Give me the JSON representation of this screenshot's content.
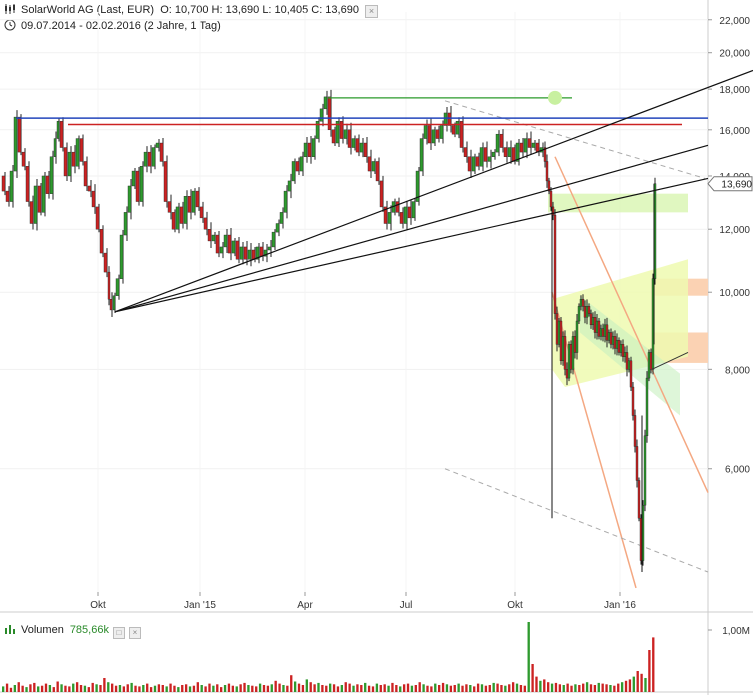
{
  "header": {
    "title": "SolarWorld AG (Last, EUR)",
    "ohlc": "O: 10,700  H: 13,690  L: 10,405  C: 13,690",
    "range": "09.07.2014 - 02.02.2016 (2 Jahre, 1 Tag)"
  },
  "volume": {
    "label": "Volumen",
    "value": "785,66k",
    "axis_label": "1,00M"
  },
  "colors": {
    "up": "#2e9a2e",
    "down": "#cc2222",
    "blue_line": "#2244bb",
    "red_line": "#cc2222",
    "green_line": "#2a9a2a",
    "channel_orange": "#f4a882",
    "trend": "#111111",
    "dashed": "#aaaaaa"
  },
  "chart_data": {
    "type": "line",
    "xlabels": [
      "Okt",
      "Jan '15",
      "Apr",
      "Jul",
      "Okt",
      "Jan '16"
    ],
    "ylabels": [
      "22,000",
      "20,000",
      "18,000",
      "16,000",
      "14,000",
      "12,000",
      "10,000",
      "8,000",
      "6,000"
    ],
    "last_price_label": "13,690",
    "yscale": "log",
    "ylim": [
      4.2,
      22.5
    ],
    "series": [
      {
        "values": [
          [
            0,
            14.0
          ],
          [
            4,
            13.4
          ],
          [
            8,
            13.0
          ],
          [
            12,
            14.2
          ],
          [
            16,
            16.6
          ],
          [
            20,
            15.0
          ],
          [
            24,
            14.4
          ],
          [
            28,
            13.0
          ],
          [
            32,
            12.2
          ],
          [
            36,
            13.6
          ],
          [
            40,
            12.6
          ],
          [
            44,
            14.0
          ],
          [
            48,
            13.3
          ],
          [
            52,
            14.8
          ],
          [
            55,
            15.6
          ],
          [
            58,
            16.4
          ],
          [
            62,
            15.2
          ],
          [
            66,
            14.0
          ],
          [
            70,
            15.0
          ],
          [
            74,
            14.4
          ],
          [
            78,
            15.6
          ],
          [
            82,
            14.6
          ],
          [
            86,
            13.6
          ],
          [
            90,
            13.4
          ],
          [
            94,
            12.8
          ],
          [
            98,
            12.0
          ],
          [
            102,
            11.2
          ],
          [
            106,
            10.6
          ],
          [
            108,
            9.8
          ],
          [
            111,
            9.5
          ],
          [
            114,
            9.9
          ],
          [
            118,
            10.4
          ],
          [
            122,
            11.8
          ],
          [
            126,
            12.6
          ],
          [
            130,
            13.6
          ],
          [
            134,
            14.2
          ],
          [
            138,
            13.0
          ],
          [
            142,
            14.4
          ],
          [
            146,
            15.0
          ],
          [
            150,
            14.4
          ],
          [
            154,
            15.2
          ],
          [
            158,
            15.4
          ],
          [
            162,
            14.6
          ],
          [
            166,
            13.0
          ],
          [
            170,
            12.6
          ],
          [
            174,
            12.0
          ],
          [
            178,
            12.8
          ],
          [
            182,
            12.2
          ],
          [
            186,
            13.2
          ],
          [
            190,
            12.6
          ],
          [
            194,
            13.4
          ],
          [
            198,
            12.8
          ],
          [
            202,
            12.4
          ],
          [
            206,
            12.0
          ],
          [
            210,
            11.6
          ],
          [
            214,
            11.8
          ],
          [
            218,
            11.2
          ],
          [
            222,
            11.4
          ],
          [
            226,
            11.8
          ],
          [
            230,
            11.2
          ],
          [
            234,
            11.6
          ],
          [
            238,
            11.0
          ],
          [
            242,
            11.4
          ],
          [
            246,
            11.0
          ],
          [
            250,
            11.3
          ],
          [
            254,
            11.0
          ],
          [
            258,
            11.4
          ],
          [
            262,
            11.1
          ],
          [
            266,
            11.3
          ],
          [
            270,
            11.4
          ],
          [
            274,
            11.9
          ],
          [
            278,
            12.2
          ],
          [
            282,
            12.6
          ],
          [
            286,
            13.4
          ],
          [
            290,
            13.8
          ],
          [
            294,
            14.6
          ],
          [
            298,
            14.2
          ],
          [
            302,
            14.8
          ],
          [
            306,
            15.4
          ],
          [
            310,
            14.8
          ],
          [
            314,
            15.6
          ],
          [
            318,
            16.4
          ],
          [
            322,
            17.0
          ],
          [
            326,
            17.6
          ],
          [
            330,
            16.0
          ],
          [
            334,
            15.4
          ],
          [
            338,
            16.4
          ],
          [
            342,
            15.6
          ],
          [
            346,
            16.0
          ],
          [
            350,
            15.2
          ],
          [
            354,
            15.6
          ],
          [
            358,
            15.0
          ],
          [
            362,
            15.4
          ],
          [
            366,
            14.8
          ],
          [
            370,
            14.2
          ],
          [
            374,
            14.6
          ],
          [
            378,
            13.8
          ],
          [
            382,
            12.8
          ],
          [
            386,
            12.2
          ],
          [
            390,
            12.6
          ],
          [
            394,
            13.0
          ],
          [
            398,
            12.6
          ],
          [
            402,
            12.2
          ],
          [
            406,
            12.8
          ],
          [
            410,
            12.4
          ],
          [
            414,
            13.0
          ],
          [
            418,
            14.2
          ],
          [
            422,
            15.6
          ],
          [
            426,
            16.2
          ],
          [
            430,
            15.4
          ],
          [
            434,
            16.0
          ],
          [
            438,
            15.6
          ],
          [
            442,
            16.2
          ],
          [
            446,
            16.8
          ],
          [
            450,
            16.2
          ],
          [
            454,
            15.8
          ],
          [
            458,
            16.4
          ],
          [
            462,
            15.2
          ],
          [
            466,
            14.8
          ],
          [
            470,
            14.2
          ],
          [
            474,
            14.8
          ],
          [
            478,
            14.4
          ],
          [
            482,
            15.2
          ],
          [
            486,
            14.6
          ],
          [
            490,
            14.8
          ],
          [
            494,
            15.0
          ],
          [
            498,
            15.8
          ],
          [
            502,
            15.2
          ],
          [
            506,
            14.8
          ],
          [
            510,
            15.2
          ],
          [
            514,
            14.6
          ],
          [
            518,
            15.4
          ],
          [
            522,
            15.0
          ],
          [
            526,
            15.6
          ],
          [
            530,
            15.2
          ],
          [
            534,
            15.4
          ],
          [
            538,
            15.0
          ],
          [
            542,
            15.2
          ],
          [
            544,
            14.6
          ],
          [
            546,
            13.8
          ],
          [
            548,
            13.4
          ],
          [
            550,
            12.8
          ],
          [
            552,
            12.5
          ],
          [
            554,
            9.4
          ],
          [
            556,
            8.6
          ],
          [
            558,
            9.2
          ],
          [
            560,
            8.2
          ],
          [
            562,
            8.8
          ],
          [
            564,
            8.0
          ],
          [
            566,
            7.8
          ],
          [
            568,
            8.6
          ],
          [
            570,
            8.0
          ],
          [
            572,
            8.8
          ],
          [
            574,
            8.4
          ],
          [
            576,
            9.2
          ],
          [
            578,
            9.6
          ],
          [
            580,
            9.8
          ],
          [
            582,
            9.6
          ],
          [
            584,
            9.3
          ],
          [
            586,
            9.6
          ],
          [
            588,
            9.4
          ],
          [
            590,
            9.1
          ],
          [
            592,
            9.3
          ],
          [
            594,
            8.9
          ],
          [
            596,
            9.2
          ],
          [
            598,
            8.8
          ],
          [
            600,
            9.0
          ],
          [
            602,
            8.8
          ],
          [
            604,
            9.1
          ],
          [
            606,
            8.7
          ],
          [
            608,
            8.9
          ],
          [
            610,
            8.6
          ],
          [
            612,
            8.8
          ],
          [
            614,
            8.5
          ],
          [
            616,
            8.7
          ],
          [
            618,
            8.4
          ],
          [
            620,
            8.6
          ],
          [
            622,
            8.3
          ],
          [
            624,
            8.4
          ],
          [
            626,
            8.0
          ],
          [
            628,
            8.2
          ],
          [
            630,
            7.6
          ],
          [
            632,
            7.0
          ],
          [
            634,
            6.4
          ],
          [
            636,
            5.8
          ],
          [
            638,
            5.2
          ],
          [
            640,
            4.6
          ],
          [
            642,
            5.4
          ],
          [
            644,
            6.6
          ],
          [
            646,
            7.8
          ],
          [
            648,
            8.4
          ],
          [
            650,
            8.0
          ],
          [
            652,
            10.4
          ],
          [
            654,
            13.69
          ]
        ]
      }
    ],
    "volume_values": [
      8,
      12,
      6,
      10,
      14,
      9,
      7,
      11,
      13,
      8,
      9,
      12,
      10,
      7,
      15,
      11,
      9,
      8,
      12,
      14,
      10,
      9,
      7,
      13,
      11,
      10,
      20,
      14,
      12,
      9,
      10,
      8,
      11,
      13,
      9,
      8,
      10,
      12,
      7,
      9,
      11,
      10,
      8,
      12,
      9,
      7,
      10,
      11,
      8,
      9,
      14,
      10,
      8,
      12,
      9,
      11,
      7,
      10,
      12,
      9,
      8,
      11,
      13,
      10,
      9,
      8,
      12,
      10,
      9,
      11,
      16,
      12,
      10,
      9,
      24,
      15,
      12,
      10,
      18,
      14,
      11,
      13,
      10,
      9,
      12,
      11,
      8,
      10,
      14,
      12,
      9,
      11,
      10,
      13,
      9,
      8,
      12,
      10,
      11,
      9,
      13,
      10,
      8,
      11,
      12,
      9,
      10,
      14,
      11,
      9,
      8,
      12,
      10,
      13,
      11,
      9,
      10,
      12,
      9,
      11,
      10,
      8,
      12,
      11,
      9,
      10,
      13,
      12,
      10,
      9,
      11,
      14,
      12,
      10,
      9,
      100,
      40,
      22,
      16,
      18,
      14,
      12,
      13,
      11,
      10,
      12,
      9,
      11,
      10,
      12,
      14,
      11,
      10,
      13,
      12,
      11,
      10,
      9,
      12,
      14,
      16,
      18,
      22,
      30,
      26,
      20,
      60,
      78
    ],
    "volume_ylim": [
      0,
      1.0
    ],
    "grid": true,
    "legend": "none"
  }
}
